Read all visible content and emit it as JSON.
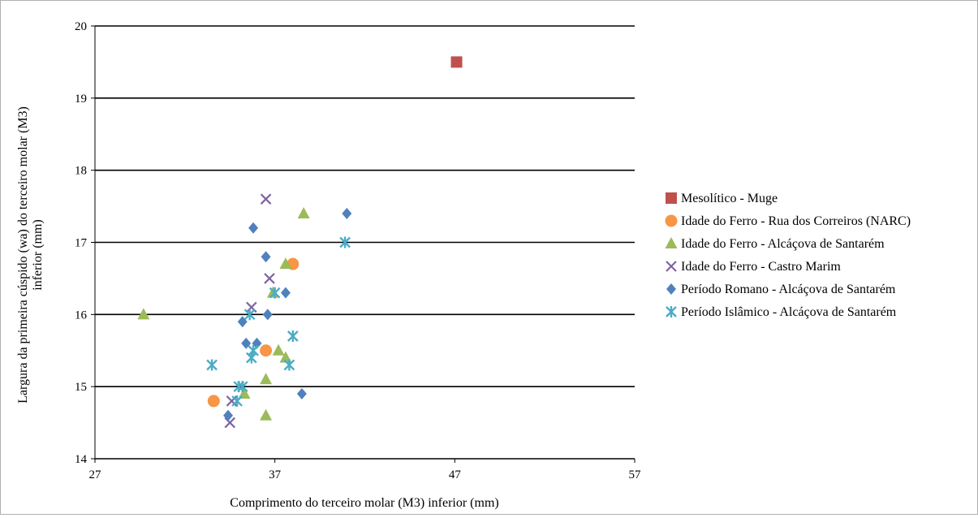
{
  "chart_data": {
    "type": "scatter",
    "xlabel": "Comprimento do terceiro molar (M3) inferior (mm)",
    "ylabel": "Largura da primeira cúspido (wa) do terceiro molar (M3) inferior (mm)",
    "xlim": [
      27,
      57
    ],
    "ylim": [
      14,
      20
    ],
    "xticks": [
      "27",
      "37",
      "47",
      "57"
    ],
    "yticks": [
      "14",
      "15",
      "16",
      "17",
      "18",
      "19",
      "20"
    ],
    "grid": "horizontal major gridlines",
    "legend_position": "right",
    "series": [
      {
        "name": "Mesolítico - Muge",
        "marker": "square",
        "color": "#c0504d",
        "points": [
          [
            47.1,
            19.5
          ]
        ]
      },
      {
        "name": "Idade do Ferro - Rua dos Correiros (NARC)",
        "marker": "circle",
        "color": "#f79646",
        "points": [
          [
            33.6,
            14.8
          ],
          [
            36.5,
            15.5
          ],
          [
            38.0,
            16.7
          ]
        ]
      },
      {
        "name": "Idade do Ferro - Alcáçova de Santarém",
        "marker": "triangle",
        "color": "#9bbb59",
        "points": [
          [
            29.7,
            16.0
          ],
          [
            35.3,
            14.9
          ],
          [
            36.5,
            15.1
          ],
          [
            36.5,
            14.6
          ],
          [
            37.2,
            15.5
          ],
          [
            37.6,
            15.4
          ],
          [
            37.6,
            16.7
          ],
          [
            36.9,
            16.3
          ],
          [
            38.6,
            17.4
          ]
        ]
      },
      {
        "name": "Idade do Ferro - Castro Marim",
        "marker": "x",
        "color": "#8064a2",
        "points": [
          [
            34.5,
            14.5
          ],
          [
            34.6,
            14.8
          ],
          [
            35.7,
            16.1
          ],
          [
            36.5,
            17.6
          ],
          [
            36.7,
            16.5
          ]
        ]
      },
      {
        "name": "Período Romano - Alcáçova de Santarém",
        "marker": "diamond",
        "color": "#4f81bd",
        "points": [
          [
            34.4,
            14.6
          ],
          [
            35.2,
            15.9
          ],
          [
            35.4,
            15.6
          ],
          [
            36.0,
            15.6
          ],
          [
            35.8,
            17.2
          ],
          [
            36.6,
            16.0
          ],
          [
            36.5,
            16.8
          ],
          [
            37.6,
            16.3
          ],
          [
            38.5,
            14.9
          ],
          [
            41.0,
            17.4
          ]
        ]
      },
      {
        "name": "Período Islâmico - Alcáçova de Santarém",
        "marker": "asterisk",
        "color": "#4bacc6",
        "points": [
          [
            33.5,
            15.3
          ],
          [
            34.9,
            14.8
          ],
          [
            35.0,
            15.0
          ],
          [
            35.2,
            15.0
          ],
          [
            35.6,
            16.0
          ],
          [
            35.7,
            15.4
          ],
          [
            35.8,
            15.5
          ],
          [
            37.0,
            16.3
          ],
          [
            37.8,
            15.3
          ],
          [
            38.0,
            15.7
          ],
          [
            40.9,
            17.0
          ]
        ]
      }
    ]
  }
}
